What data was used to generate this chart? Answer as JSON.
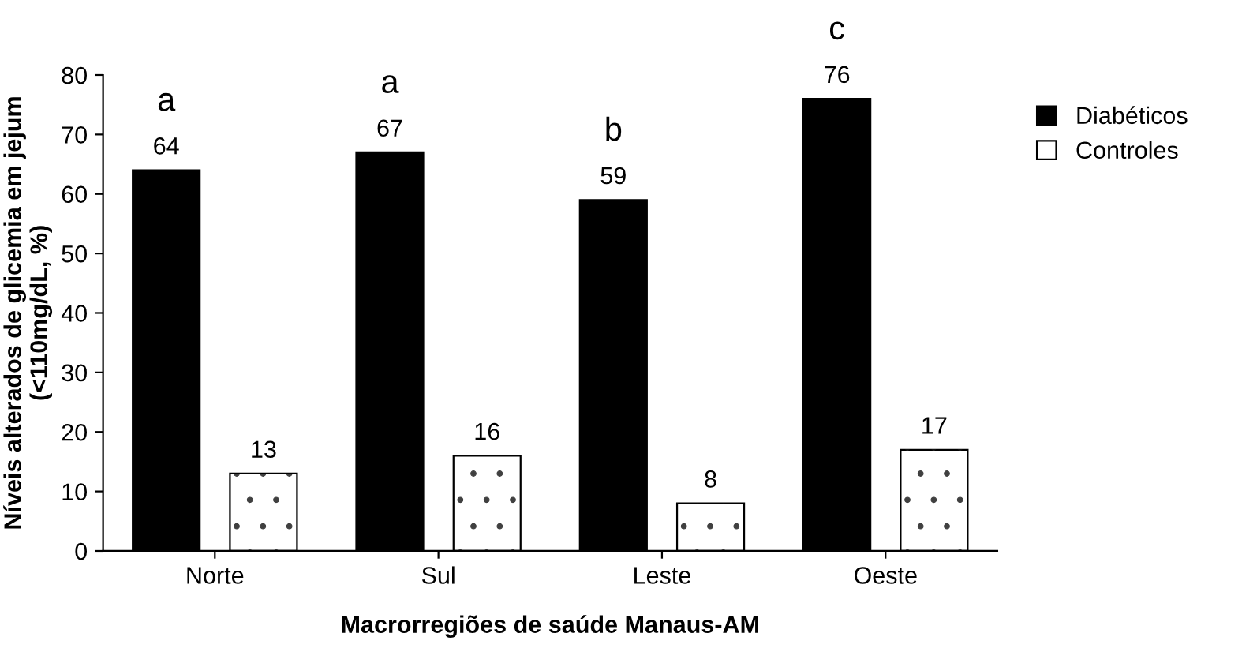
{
  "chart_data": {
    "type": "bar",
    "xlabel": "Macrorregiões de saúde Manaus-AM",
    "ylabel": "Níveis alterados de glicemia em jejum\n(<110mg/dL, %)",
    "categories": [
      "Norte",
      "Sul",
      "Leste",
      "Oeste"
    ],
    "series": [
      {
        "name": "Diabéticos",
        "color": "#000000",
        "values": [
          64,
          67,
          59,
          76
        ]
      },
      {
        "name": "Controles",
        "color": "#ffffff",
        "values": [
          13,
          16,
          8,
          17
        ]
      }
    ],
    "ylim": [
      0,
      80
    ],
    "yticks": [
      0,
      10,
      20,
      30,
      40,
      50,
      60,
      70,
      80
    ],
    "data_labels": true,
    "legend": "right",
    "grid": false,
    "annotations": [
      "a",
      "a",
      "b",
      "c"
    ]
  }
}
